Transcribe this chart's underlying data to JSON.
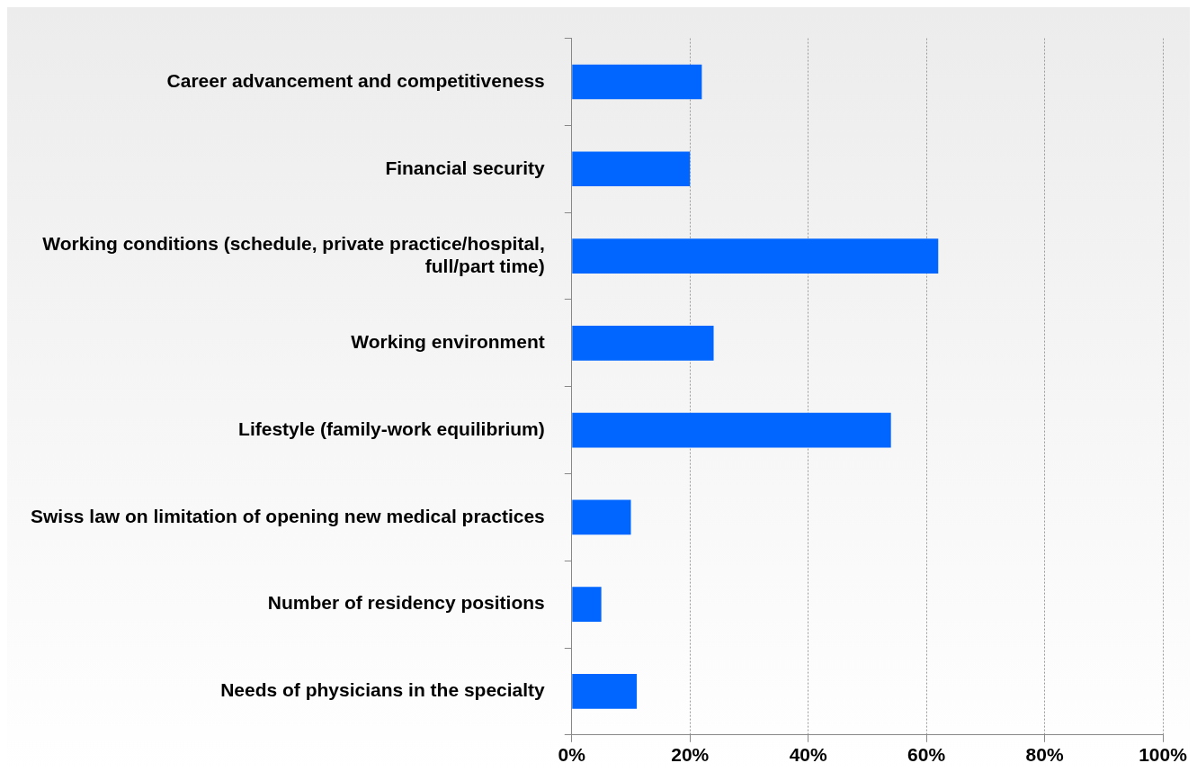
{
  "chart_data": {
    "type": "bar",
    "orientation": "horizontal",
    "categories": [
      "Career advancement and competitiveness",
      "Financial security",
      "Working conditions (schedule, private practice/hospital, full/part time)",
      "Working environment",
      "Lifestyle (family-work equilibrium)",
      "Swiss law on limitation of opening new medical practices",
      "Number of residency positions",
      "Needs of physicians in the specialty"
    ],
    "values": [
      22,
      20,
      62,
      24,
      54,
      10,
      5,
      11
    ],
    "color": "#0066ff",
    "xlim": [
      0,
      100
    ],
    "xticks": [
      {
        "value": 0,
        "label": "0%"
      },
      {
        "value": 20,
        "label": "20%"
      },
      {
        "value": 40,
        "label": "40%"
      },
      {
        "value": 60,
        "label": "60%"
      },
      {
        "value": 80,
        "label": "80%"
      },
      {
        "value": 100,
        "label": "100%"
      }
    ],
    "grid": "x",
    "legend": false
  }
}
